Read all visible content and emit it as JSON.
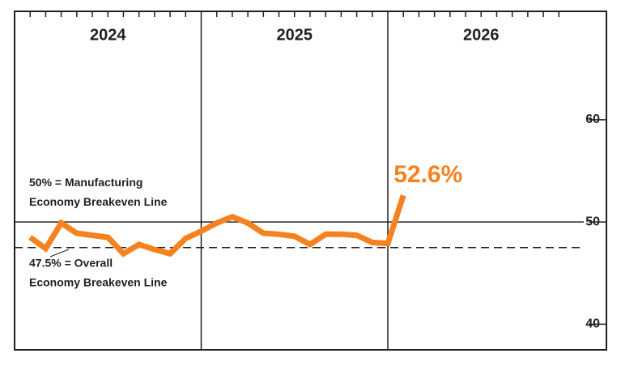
{
  "chart_data": {
    "type": "line",
    "years": [
      "2024",
      "2025",
      "2026"
    ],
    "series": [
      {
        "color": "#f5821f",
        "values": [
          48.5,
          47.4,
          49.9,
          48.9,
          48.7,
          48.5,
          46.9,
          47.8,
          47.3,
          46.9,
          48.4,
          49.1,
          49.9,
          50.5,
          49.9,
          48.9,
          48.8,
          48.6,
          47.8,
          48.8,
          48.8,
          48.7,
          48.0,
          47.9,
          52.6
        ],
        "value_labels": [
          null,
          null,
          null,
          null,
          null,
          null,
          null,
          null,
          null,
          null,
          null,
          null,
          null,
          null,
          null,
          null,
          null,
          null,
          null,
          null,
          null,
          null,
          null,
          null,
          "52.6%"
        ]
      }
    ],
    "ylim": [
      37.5,
      70.6
    ],
    "yticks": [
      40,
      50,
      60
    ],
    "reference_lines": [
      {
        "value": 50,
        "style": "solid",
        "label": [
          "50% = Manufacturing",
          "Economy Breakeven Line"
        ]
      },
      {
        "value": 47.5,
        "style": "dashed",
        "label": [
          "47.5% = Overall",
          "Economy Breakeven Line"
        ]
      }
    ]
  }
}
